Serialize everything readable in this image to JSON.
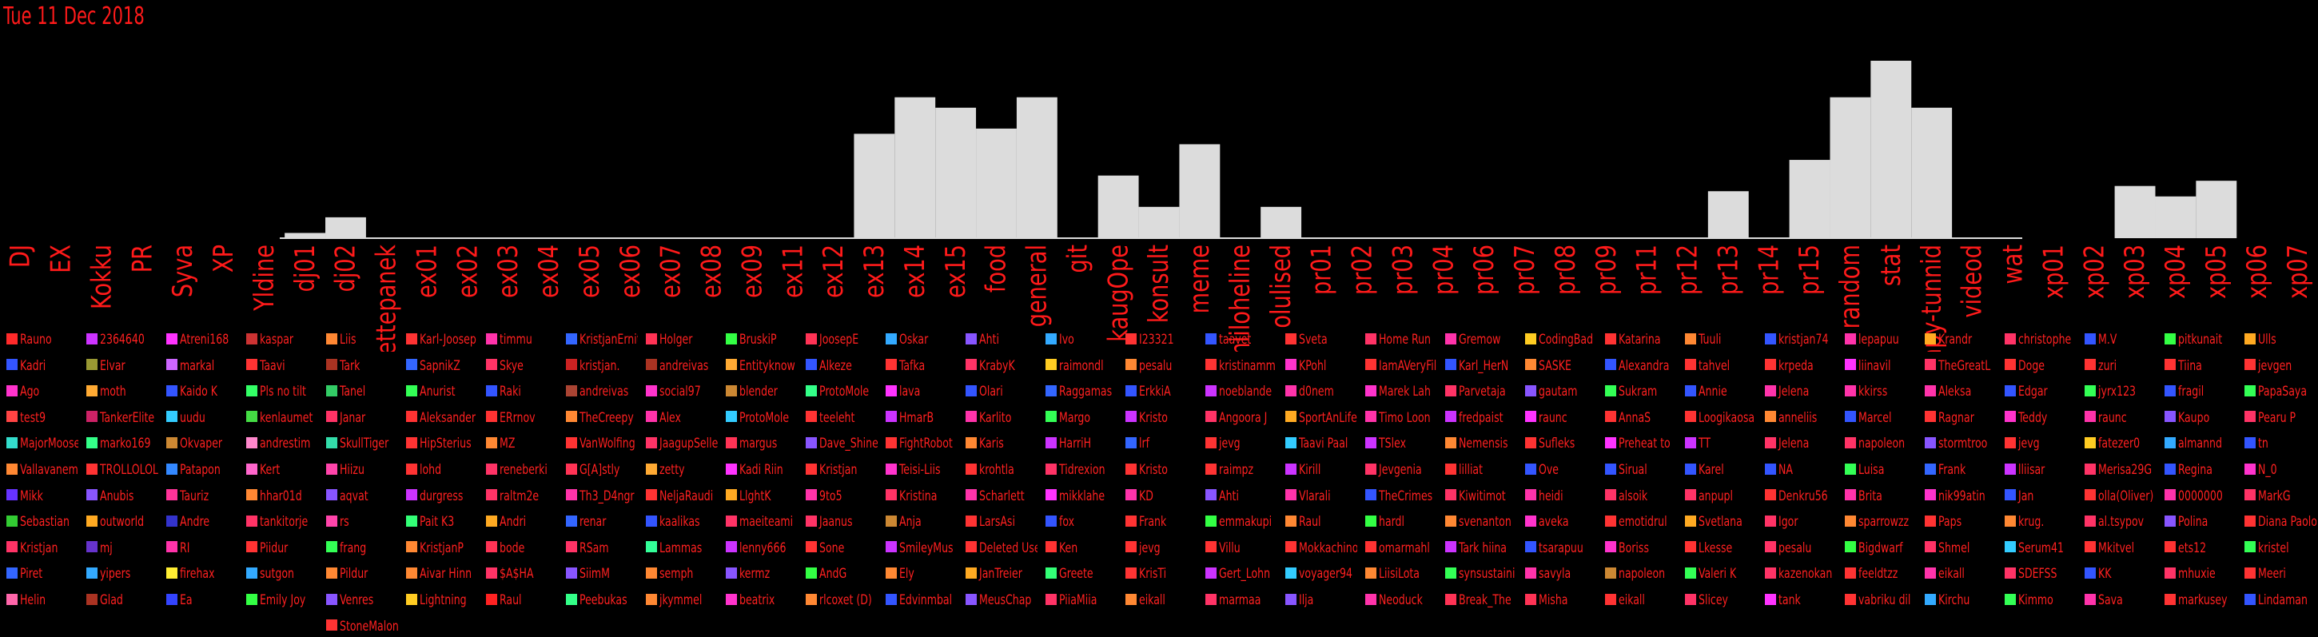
{
  "date": "Tue 11 Dec 2018",
  "chart_data": {
    "type": "bar",
    "categories": [
      "DJ",
      "EX",
      "Kokku",
      "PR",
      "Syva",
      "XP",
      "Yldine",
      "dj01",
      "dj02",
      "ettepanek",
      "ex01",
      "ex02",
      "ex03",
      "ex04",
      "ex05",
      "ex06",
      "ex07",
      "ex08",
      "ex09",
      "ex11",
      "ex12",
      "ex13",
      "ex14",
      "ex15",
      "food",
      "general",
      "git",
      "kaugOpe",
      "konsult",
      "meme",
      "mitteniiloheline",
      "olulised",
      "pr01",
      "pr02",
      "pr03",
      "pr04",
      "pr06",
      "pr07",
      "pr08",
      "pr09",
      "pr11",
      "pr12",
      "pr13",
      "pr14",
      "pr15",
      "random",
      "stat",
      "syvapy-tunnid",
      "videod",
      "wat",
      "xp01",
      "xp02",
      "xp03",
      "xp04",
      "xp05",
      "xp06",
      "xp07"
    ],
    "values": [
      0,
      0,
      0,
      0,
      0,
      0,
      0,
      1,
      4,
      0,
      0,
      0,
      0,
      0,
      0,
      0,
      0,
      0,
      0,
      0,
      0,
      20,
      27,
      25,
      21,
      27,
      0,
      12,
      6,
      18,
      0,
      6,
      0,
      0,
      0,
      0,
      0,
      0,
      0,
      0,
      0,
      0,
      9,
      0,
      15,
      27,
      34,
      25,
      0,
      0,
      0,
      0,
      10,
      8,
      11,
      0,
      0
    ]
  },
  "user_columns": [
    {
      "names": [
        "Rauno",
        "Kadri",
        "Ago",
        "test9",
        "MajorMoose",
        "Vallavanem",
        "Mikk",
        "Sebastian",
        "Kristjan",
        "Piret",
        "Helin"
      ],
      "colors": [
        "#ff2a2a",
        "#3355ff",
        "#ff33cc",
        "#ff4444",
        "#33ddcc",
        "#ff8833",
        "#6633ff",
        "#33cc33",
        "#ff3366",
        "#3366ff",
        "#ff66aa"
      ]
    },
    {
      "names": [
        "2364640",
        "Elvar",
        "moth",
        "TankerElite",
        "marko169",
        "TROLLOLOL",
        "Anubis",
        "outworld",
        "mj",
        "yipers",
        "Glad"
      ],
      "colors": [
        "#cc33ff",
        "#999933",
        "#ffaa33",
        "#cc2266",
        "#33ff88",
        "#ff3333",
        "#8855ff",
        "#ffaa22",
        "#6633cc",
        "#33aaff",
        "#aa3322"
      ]
    },
    {
      "names": [
        "Atreni168",
        "markal",
        "Kaido K",
        "uudu",
        "Okvaper",
        "Patapon",
        "Tauriz",
        "Andre",
        "RI",
        "firehax",
        "Ea"
      ],
      "colors": [
        "#ff33ff",
        "#cc66ff",
        "#3355ff",
        "#33ccff",
        "#cc8833",
        "#3388ff",
        "#ff3399",
        "#3333cc",
        "#ff33aa",
        "#ffee33",
        "#3344ff"
      ]
    },
    {
      "names": [
        "kaspar",
        "Taavi",
        "Pls no tilt",
        "kenlaumet",
        "andrestim",
        "Kert",
        "hhar01d",
        "tankitorje",
        "Piidur",
        "sutgon",
        "Emily Joy"
      ],
      "colors": [
        "#cc3333",
        "#ff3333",
        "#33ff66",
        "#44dd44",
        "#ff88cc",
        "#ff66cc",
        "#ff8833",
        "#ff3366",
        "#ff3333",
        "#33aaff",
        "#33ff44"
      ]
    },
    {
      "names": [
        "Liis",
        "Tark",
        "Tanel",
        "Janar",
        "SkullTiger",
        "Hiizu",
        "aqvat",
        "rs",
        "frang",
        "Pildur",
        "Venres",
        "StoneMalon"
      ],
      "colors": [
        "#ff8833",
        "#aa3322",
        "#33cc66",
        "#ff3366",
        "#33ddaa",
        "#ff44aa",
        "#8855ff",
        "#ff44aa",
        "#33ff55",
        "#ff8833",
        "#8855ff",
        "#ff3333"
      ]
    },
    {
      "names": [
        "Karl-Joosep",
        "SapnikZ",
        "Anurist",
        "Aleksander",
        "HipSterius",
        "lohd",
        "durgress",
        "Pait K3",
        "KristjanP",
        "Aivar Hinn",
        "Lightning"
      ],
      "colors": [
        "#ff3333",
        "#3366ff",
        "#33ff55",
        "#ff3333",
        "#ff3333",
        "#ff3333",
        "#cc33ff",
        "#33ff77",
        "#ff8833",
        "#ff8833",
        "#ffcc22"
      ]
    },
    {
      "names": [
        "timmu",
        "Skye",
        "Raki",
        "ERrnov",
        "MZ",
        "reneberki",
        "raltm2e",
        "Andri",
        "bode",
        "$A$HA",
        "Raul"
      ],
      "colors": [
        "#ff33aa",
        "#ff3366",
        "#3355ff",
        "#ff3333",
        "#ff8833",
        "#ff3366",
        "#ff3366",
        "#ffaa22",
        "#ff3355",
        "#ff3366",
        "#ff2222"
      ]
    },
    {
      "names": [
        "KristjanErnits",
        "kristjan.",
        "andreivas",
        "TheCreepy",
        "VanWolfing",
        "G[A]stly",
        "Th3_D4ngr",
        "renar",
        "RSam",
        "SiimM",
        "Peebukas"
      ],
      "colors": [
        "#3366ff",
        "#cc2222",
        "#aa4433",
        "#ff8833",
        "#ff3333",
        "#ff3355",
        "#ff33aa",
        "#3366ff",
        "#ff3366",
        "#8855ff",
        "#33ff88"
      ]
    },
    {
      "names": [
        "Holger",
        "andreivas",
        "social97",
        "Alex",
        "JaagupSelle",
        "zetty",
        "NeljaRaudi",
        "kaalikas",
        "Lammas",
        "semph",
        "jkymmel"
      ],
      "colors": [
        "#ff3355",
        "#aa3322",
        "#ff33cc",
        "#ff33aa",
        "#ff3366",
        "#ffaa33",
        "#ff3333",
        "#3355ff",
        "#33ff99",
        "#ff8833",
        "#ff8833"
      ]
    },
    {
      "names": [
        "BruskiP",
        "Entityknow",
        "blender",
        "ProtoMole",
        "margus",
        "Kadi Riin",
        "LlghtK",
        "maeiteami",
        "lenny666",
        "kermz",
        "beatrix"
      ],
      "colors": [
        "#33ff44",
        "#ffaa33",
        "#cc8833",
        "#33ccff",
        "#ff3355",
        "#ff33ff",
        "#ffaa22",
        "#ff3366",
        "#cc33ff",
        "#8855ff",
        "#ff33cc"
      ]
    },
    {
      "names": [
        "JoosepE",
        "Alkeze",
        "ProtoMole",
        "teeleht",
        "Dave_Shine",
        "Kristjan",
        "9to5",
        "Jaanus",
        "Sone",
        "AndG",
        "rlcoxet (D)"
      ],
      "colors": [
        "#ff3355",
        "#3355ff",
        "#33ff88",
        "#ff3333",
        "#8855ff",
        "#ff3333",
        "#ff33aa",
        "#ff3366",
        "#ff3333",
        "#33ff44",
        "#ff8833"
      ]
    },
    {
      "names": [
        "Oskar",
        "Tafka",
        "lava",
        "HmarB",
        "FightRobot",
        "Teisi-Liis",
        "Kristina",
        "Anja",
        "SmileyMus",
        "Ely",
        "Edvinmbal"
      ],
      "colors": [
        "#33aaff",
        "#ff3333",
        "#ff33ff",
        "#cc33ff",
        "#ff3333",
        "#ff33cc",
        "#ff3366",
        "#cc8833",
        "#cc33ff",
        "#ff8833",
        "#3355ff"
      ]
    },
    {
      "names": [
        "Ahti",
        "KrabyK",
        "Olari",
        "Karlito",
        "Karis",
        "krohtla",
        "Scharlett",
        "LarsAsi",
        "Deleted User",
        "JanTreier",
        "MeusChap"
      ],
      "colors": [
        "#8855ff",
        "#ff3366",
        "#3355ff",
        "#ff33aa",
        "#ff8833",
        "#ff3333",
        "#ff33aa",
        "#ff3333",
        "#ff3333",
        "#ffaa22",
        "#8855ff"
      ]
    },
    {
      "names": [
        "Ivo",
        "raimondl",
        "Raggamas",
        "Margo",
        "HarriH",
        "Tidrexion",
        "mikklahe",
        "fox",
        "Ken",
        "Greete",
        "PiiaMiia"
      ],
      "colors": [
        "#33aaff",
        "#ffcc22",
        "#3366ff",
        "#33ff55",
        "#cc33ff",
        "#ff3366",
        "#ff33ff",
        "#3355ff",
        "#ff3333",
        "#33ff77",
        "#ff3366"
      ]
    },
    {
      "names": [
        "I23321",
        "pesalu",
        "ErkkiA",
        "Kristo",
        "lrf",
        "Kristo",
        "KD",
        "Frank",
        "jevg",
        "KrisTi",
        "eikall"
      ],
      "colors": [
        "#ff3333",
        "#ff8833",
        "#3355ff",
        "#cc33ff",
        "#3366ff",
        "#ff3333",
        "#ff33aa",
        "#ff3333",
        "#ff3333",
        "#ff3333",
        "#ff8833"
      ]
    },
    {
      "names": [
        "taavet",
        "kristinamm",
        "noeblande",
        "Angoora J",
        "jevg",
        "raimpz",
        "Ahti",
        "emmakupi",
        "Villu",
        "Gert_Lohn",
        "marmaa"
      ],
      "colors": [
        "#3355ff",
        "#ff3333",
        "#cc33ff",
        "#ff3366",
        "#ff3333",
        "#ff3333",
        "#8855ff",
        "#33ff44",
        "#ff3333",
        "#cc33ff",
        "#ff3366"
      ]
    },
    {
      "names": [
        "Sveta",
        "KPohl",
        "d0nem",
        "SportAnLife",
        "Taavi Paal",
        "Kirill",
        "Vlarali",
        "Raul",
        "Mokkachino",
        "voyager94",
        "Ilja"
      ],
      "colors": [
        "#ff3333",
        "#ff33cc",
        "#ff33aa",
        "#ffaa22",
        "#33ccff",
        "#cc33ff",
        "#ff33aa",
        "#ff8833",
        "#ff3333",
        "#33ccff",
        "#8855ff"
      ]
    },
    {
      "names": [
        "Home Run",
        "IamAVeryFile",
        "Marek Lah",
        "Timo Loon",
        "TSlex",
        "Jevgenia",
        "TheCrimes",
        "hardl",
        "omarmahl",
        "LiisiLota",
        "Neoduck"
      ],
      "colors": [
        "#ff3366",
        "#ff3333",
        "#ff33cc",
        "#ff33aa",
        "#cc33ff",
        "#ff3366",
        "#3355ff",
        "#33ff44",
        "#ff3333",
        "#ff8833",
        "#ff33aa"
      ]
    },
    {
      "names": [
        "Gremow",
        "Karl_HerN",
        "Parvetaja",
        "fredpaist",
        "Nemensis",
        "lilliat",
        "Kiwitimot",
        "svenanton",
        "Tark hiina",
        "synsustaini",
        "Break_The"
      ],
      "colors": [
        "#ff33aa",
        "#3355ff",
        "#ff3366",
        "#cc33ff",
        "#ff8833",
        "#ff3333",
        "#ff3366",
        "#ff8833",
        "#cc33ff",
        "#33ff55",
        "#ff3355"
      ]
    },
    {
      "names": [
        "CodingBad",
        "SASKE",
        "gautam",
        "raunc",
        "Sufleks",
        "Ove",
        "heidi",
        "aveka",
        "tsarapuu",
        "savyla",
        "Misha"
      ],
      "colors": [
        "#ffcc22",
        "#ff8833",
        "#8855ff",
        "#ff33ff",
        "#ff3333",
        "#3355ff",
        "#ff33aa",
        "#ff33cc",
        "#3355ff",
        "#ff33aa",
        "#ff3355"
      ]
    },
    {
      "names": [
        "Katarina",
        "Alexandra",
        "Sukram",
        "AnnaS",
        "Preheat to",
        "Sirual",
        "alsoik",
        "emotidrul",
        "Boriss",
        "napoleon",
        "eikall"
      ],
      "colors": [
        "#ff3333",
        "#3355ff",
        "#33ff55",
        "#ff3333",
        "#ff33ff",
        "#3355ff",
        "#ff3366",
        "#ff3333",
        "#ff33cc",
        "#cc8833",
        "#ff3333"
      ]
    },
    {
      "names": [
        "Tuuli",
        "tahvel",
        "Annie",
        "Loogikaosa",
        "TT",
        "Karel",
        "anpupl",
        "Svetlana",
        "Lkesse",
        "Valeri K",
        "Slicey"
      ],
      "colors": [
        "#ff8833",
        "#ff3333",
        "#3355ff",
        "#ff3333",
        "#cc33ff",
        "#3355ff",
        "#ff3366",
        "#ffaa22",
        "#ff3333",
        "#33ff55",
        "#ff3366"
      ]
    },
    {
      "names": [
        "kristjan74",
        "krpeda",
        "Jelena",
        "anneliis",
        "Jelena",
        "NA",
        "Denkru56",
        "Igor",
        "pesalu",
        "kazenokan",
        "tank"
      ],
      "colors": [
        "#3355ff",
        "#ff3333",
        "#ff33aa",
        "#ff8833",
        "#ff3366",
        "#3355ff",
        "#ff3333",
        "#ff3366",
        "#ff3366",
        "#ff3366",
        "#ff33ff"
      ]
    },
    {
      "names": [
        "lepapuu",
        "liinavil",
        "kkirss",
        "Marcel",
        "napoleon",
        "Luisa",
        "Brita",
        "sparrowzz",
        "Bigdwarf",
        "feeldtzz",
        "vabriku dil"
      ],
      "colors": [
        "#ff33aa",
        "#ff33ff",
        "#ff33aa",
        "#3355ff",
        "#ff3366",
        "#33ff55",
        "#ff33aa",
        "#ff8833",
        "#33ff44",
        "#ff3333",
        "#ff3333"
      ]
    },
    {
      "names": [
        "Krandr",
        "TheGreatL",
        "Aleksa",
        "Ragnar",
        "stormtroo",
        "Frank",
        "nik99atin",
        "Paps",
        "Shmel",
        "eikall",
        "Kirchu"
      ],
      "colors": [
        "#ffaa22",
        "#ff3366",
        "#ff33aa",
        "#ff3333",
        "#8855ff",
        "#3366ff",
        "#ff33cc",
        "#ff3333",
        "#ff3366",
        "#ff33aa",
        "#33aaff"
      ]
    },
    {
      "names": [
        "christophe",
        "Doge",
        "Edgar",
        "Teddy",
        "jevg",
        "lliisar",
        "Jan",
        "krug.",
        "Serum41",
        "SDEFSS",
        "Kimmo"
      ],
      "colors": [
        "#ff3366",
        "#ff3333",
        "#3355ff",
        "#ff33cc",
        "#ff3333",
        "#cc33ff",
        "#3355ff",
        "#ff8833",
        "#33ccff",
        "#ff3366",
        "#33ff55"
      ]
    },
    {
      "names": [
        "M.V",
        "zuri",
        "jyrx123",
        "raunc",
        "fatezer0",
        "Merisa29G",
        "olla(Oliver)",
        "al.tsypov",
        "Mkitvel",
        "KK",
        "Sava"
      ],
      "colors": [
        "#3355ff",
        "#ff3333",
        "#33ff55",
        "#ff33aa",
        "#ffcc22",
        "#ff3366",
        "#ff3333",
        "#ff3366",
        "#ff3333",
        "#3355ff",
        "#ff33aa"
      ]
    },
    {
      "names": [
        "pitkunait",
        "Tiina",
        "fragil",
        "Kaupo",
        "almannd",
        "Regina",
        "0000000",
        "Polina",
        "ets12",
        "mhuxie",
        "markusey"
      ],
      "colors": [
        "#33ff44",
        "#ff3333",
        "#3355ff",
        "#8855ff",
        "#33aaff",
        "#3355ff",
        "#ff33aa",
        "#8855ff",
        "#ff3333",
        "#ff3366",
        "#ff3333"
      ]
    },
    {
      "names": [
        "Ulls",
        "jevgen",
        "PapaSaya",
        "Pearu P",
        "tn",
        "N_0",
        "MarkG",
        "Diana Paolo",
        "kristel",
        "Meeri",
        "Lindaman"
      ],
      "colors": [
        "#ffaa22",
        "#ff3333",
        "#33ff55",
        "#ff3366",
        "#3355ff",
        "#ff33cc",
        "#ff3366",
        "#ff3333",
        "#33ff55",
        "#ff3333",
        "#3355ff"
      ]
    }
  ]
}
